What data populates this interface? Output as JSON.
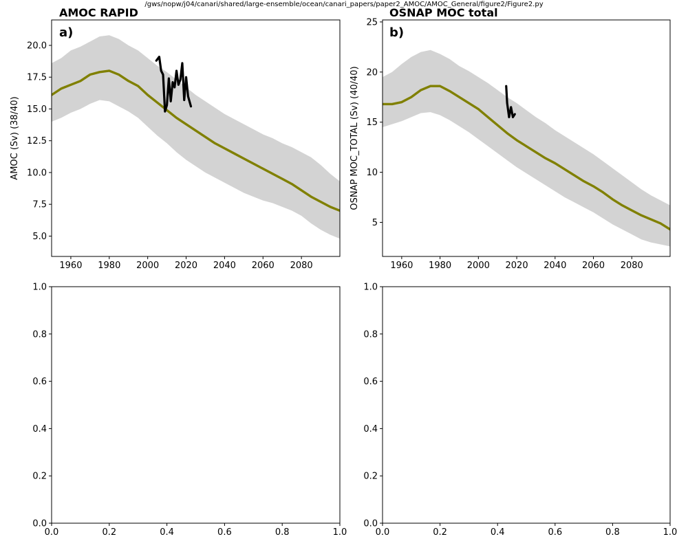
{
  "suptitle": "/gws/nopw/j04/canari/shared/large-ensemble/ocean/canari_papers/paper2_AMOC/AMOC_General/figure2/Figure2.py",
  "chart_data": [
    {
      "type": "line",
      "title": "AMOC RAPID",
      "panel_label": "a)",
      "xlabel": "",
      "ylabel": "AMOC (Sv) (38/40)",
      "xlim": [
        1950,
        2100
      ],
      "ylim": [
        3.4,
        22
      ],
      "xticks": [
        1960,
        1980,
        2000,
        2020,
        2040,
        2060,
        2080
      ],
      "xtick_labels": [
        "1960",
        "1980",
        "2000",
        "2020",
        "2040",
        "2060",
        "2080"
      ],
      "yticks": [
        5,
        7.5,
        10,
        12.5,
        15,
        17.5,
        20
      ],
      "ytick_labels": [
        "5.0",
        "7.5",
        "10.0",
        "12.5",
        "15.0",
        "17.5",
        "20.0"
      ],
      "grid": false,
      "legend": false,
      "series": [
        {
          "kind": "band",
          "color": "#d3d3d3",
          "x": [
            1950,
            1955,
            1960,
            1965,
            1970,
            1975,
            1980,
            1985,
            1990,
            1995,
            2000,
            2005,
            2010,
            2015,
            2020,
            2025,
            2030,
            2035,
            2040,
            2045,
            2050,
            2055,
            2060,
            2065,
            2070,
            2075,
            2080,
            2085,
            2090,
            2095,
            2100
          ],
          "upper": [
            18.6,
            19.0,
            19.6,
            19.9,
            20.3,
            20.7,
            20.8,
            20.5,
            20.0,
            19.6,
            19.0,
            18.4,
            17.9,
            17.3,
            16.7,
            16.1,
            15.6,
            15.1,
            14.6,
            14.2,
            13.8,
            13.4,
            13.0,
            12.7,
            12.3,
            12.0,
            11.6,
            11.2,
            10.6,
            9.9,
            9.3
          ],
          "lower": [
            14.0,
            14.3,
            14.7,
            15.0,
            15.4,
            15.7,
            15.6,
            15.2,
            14.8,
            14.3,
            13.6,
            12.9,
            12.3,
            11.6,
            11.0,
            10.5,
            10.0,
            9.6,
            9.2,
            8.8,
            8.4,
            8.1,
            7.8,
            7.6,
            7.3,
            7.0,
            6.6,
            6.0,
            5.5,
            5.1,
            4.8
          ]
        },
        {
          "kind": "line",
          "color": "#808000",
          "x": [
            1950,
            1955,
            1960,
            1965,
            1970,
            1975,
            1980,
            1985,
            1990,
            1995,
            2000,
            2005,
            2010,
            2015,
            2020,
            2025,
            2030,
            2035,
            2040,
            2045,
            2050,
            2055,
            2060,
            2065,
            2070,
            2075,
            2080,
            2085,
            2090,
            2095,
            2100
          ],
          "y": [
            16.1,
            16.6,
            16.9,
            17.2,
            17.7,
            17.9,
            18.0,
            17.7,
            17.2,
            16.8,
            16.1,
            15.5,
            14.9,
            14.3,
            13.8,
            13.3,
            12.8,
            12.3,
            11.9,
            11.5,
            11.1,
            10.7,
            10.3,
            9.9,
            9.5,
            9.1,
            8.6,
            8.1,
            7.7,
            7.3,
            7.0
          ]
        },
        {
          "kind": "line",
          "color": "#000000",
          "x": [
            2004.5,
            2006,
            2007,
            2008,
            2009,
            2010,
            2011,
            2012,
            2013,
            2014,
            2015,
            2016,
            2017,
            2018,
            2019,
            2020,
            2021,
            2022.5
          ],
          "y": [
            18.8,
            19.1,
            18.0,
            17.7,
            14.8,
            15.3,
            17.4,
            15.6,
            17.1,
            16.7,
            18.0,
            16.9,
            17.3,
            18.6,
            15.7,
            17.5,
            16.0,
            15.2
          ]
        }
      ]
    },
    {
      "type": "line",
      "title": "OSNAP MOC total",
      "panel_label": "b)",
      "xlabel": "",
      "ylabel": "OSNAP MOC_TOTAL (Sv) (40/40)",
      "xlim": [
        1950,
        2100
      ],
      "ylim": [
        1.6,
        25.2
      ],
      "xticks": [
        1960,
        1980,
        2000,
        2020,
        2040,
        2060,
        2080
      ],
      "xtick_labels": [
        "1960",
        "1980",
        "2000",
        "2020",
        "2040",
        "2060",
        "2080"
      ],
      "yticks": [
        5,
        10,
        15,
        20,
        25
      ],
      "ytick_labels": [
        "5",
        "10",
        "15",
        "20",
        "25"
      ],
      "grid": false,
      "legend": false,
      "series": [
        {
          "kind": "band",
          "color": "#d3d3d3",
          "x": [
            1950,
            1955,
            1960,
            1965,
            1970,
            1975,
            1980,
            1985,
            1990,
            1995,
            2000,
            2005,
            2010,
            2015,
            2020,
            2025,
            2030,
            2035,
            2040,
            2045,
            2050,
            2055,
            2060,
            2065,
            2070,
            2075,
            2080,
            2085,
            2090,
            2095,
            2100
          ],
          "upper": [
            19.5,
            20.0,
            20.8,
            21.5,
            22.0,
            22.2,
            21.8,
            21.3,
            20.6,
            20.1,
            19.5,
            18.9,
            18.2,
            17.5,
            16.9,
            16.2,
            15.5,
            14.9,
            14.2,
            13.6,
            13.0,
            12.4,
            11.8,
            11.1,
            10.4,
            9.7,
            9.0,
            8.3,
            7.7,
            7.2,
            6.7
          ],
          "lower": [
            14.5,
            14.8,
            15.1,
            15.5,
            15.9,
            16.0,
            15.7,
            15.2,
            14.6,
            14.0,
            13.3,
            12.6,
            11.9,
            11.2,
            10.5,
            9.9,
            9.3,
            8.7,
            8.1,
            7.5,
            7.0,
            6.5,
            6.0,
            5.4,
            4.8,
            4.3,
            3.8,
            3.3,
            3.0,
            2.8,
            2.6
          ]
        },
        {
          "kind": "line",
          "color": "#808000",
          "x": [
            1950,
            1955,
            1960,
            1965,
            1970,
            1975,
            1980,
            1985,
            1990,
            1995,
            2000,
            2005,
            2010,
            2015,
            2020,
            2025,
            2030,
            2035,
            2040,
            2045,
            2050,
            2055,
            2060,
            2065,
            2070,
            2075,
            2080,
            2085,
            2090,
            2095,
            2100
          ],
          "y": [
            16.8,
            16.8,
            17.0,
            17.5,
            18.2,
            18.6,
            18.6,
            18.1,
            17.5,
            16.9,
            16.3,
            15.5,
            14.7,
            13.9,
            13.2,
            12.6,
            12.0,
            11.4,
            10.9,
            10.3,
            9.7,
            9.1,
            8.6,
            8.0,
            7.3,
            6.7,
            6.2,
            5.7,
            5.3,
            4.9,
            4.3
          ]
        },
        {
          "kind": "line",
          "color": "#000000",
          "x": [
            2014.5,
            2015,
            2016,
            2017,
            2018,
            2019
          ],
          "y": [
            18.6,
            16.9,
            15.5,
            16.5,
            15.5,
            15.8
          ]
        }
      ]
    },
    {
      "type": "line",
      "title": "",
      "xlim": [
        0,
        1
      ],
      "ylim": [
        0,
        1
      ],
      "xticks": [
        0,
        0.2,
        0.4,
        0.6,
        0.8,
        1
      ],
      "xtick_labels": [
        "0.0",
        "0.2",
        "0.4",
        "0.6",
        "0.8",
        "1.0"
      ],
      "yticks": [
        0,
        0.2,
        0.4,
        0.6,
        0.8,
        1
      ],
      "ytick_labels": [
        "0.0",
        "0.2",
        "0.4",
        "0.6",
        "0.8",
        "1.0"
      ],
      "grid": false,
      "legend": false,
      "series": []
    },
    {
      "type": "line",
      "title": "",
      "xlim": [
        0,
        1
      ],
      "ylim": [
        0,
        1
      ],
      "xticks": [
        0,
        0.2,
        0.4,
        0.6,
        0.8,
        1
      ],
      "xtick_labels": [
        "0.0",
        "0.2",
        "0.4",
        "0.6",
        "0.8",
        "1.0"
      ],
      "yticks": [
        0,
        0.2,
        0.4,
        0.6,
        0.8,
        1
      ],
      "ytick_labels": [
        "0.0",
        "0.2",
        "0.4",
        "0.6",
        "0.8",
        "1.0"
      ],
      "grid": false,
      "legend": false,
      "series": []
    }
  ]
}
